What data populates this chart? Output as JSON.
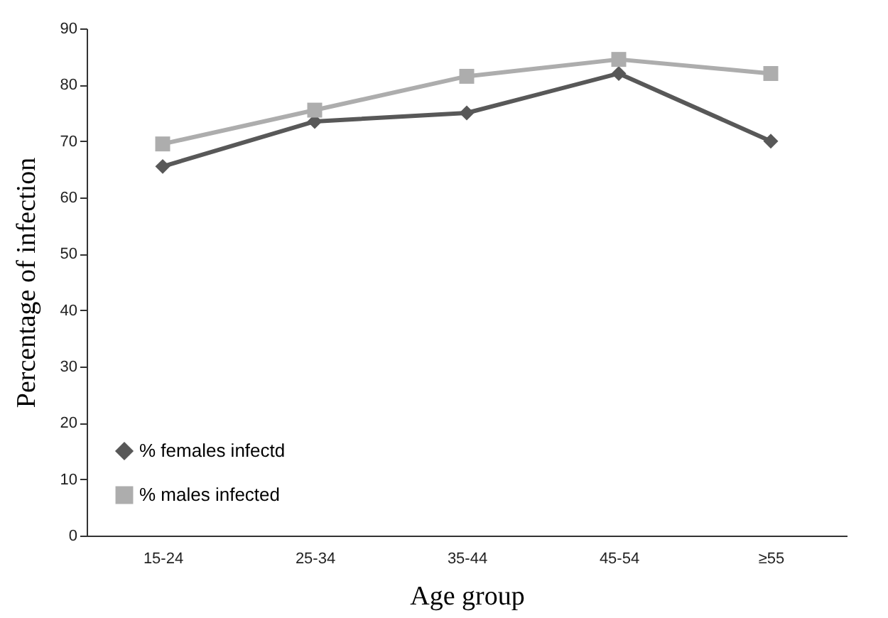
{
  "chart_data": {
    "type": "line",
    "xlabel": "Age group",
    "ylabel": "Percentage of infection",
    "categories": [
      "15-24",
      "25-34",
      "35-44",
      "45-54",
      "≥55"
    ],
    "series": [
      {
        "name": "% females infectd",
        "color": "#585858",
        "marker": "diamond",
        "values": [
          65.5,
          73.5,
          75,
          82,
          70
        ]
      },
      {
        "name": "% males infected",
        "color": "#adadad",
        "marker": "square",
        "values": [
          69.5,
          75.5,
          81.5,
          84.5,
          82
        ]
      }
    ],
    "ylim": [
      0,
      90
    ],
    "yticks": [
      0,
      10,
      20,
      30,
      40,
      50,
      60,
      70,
      80,
      90
    ],
    "grid": false,
    "legend": "bottom left"
  }
}
